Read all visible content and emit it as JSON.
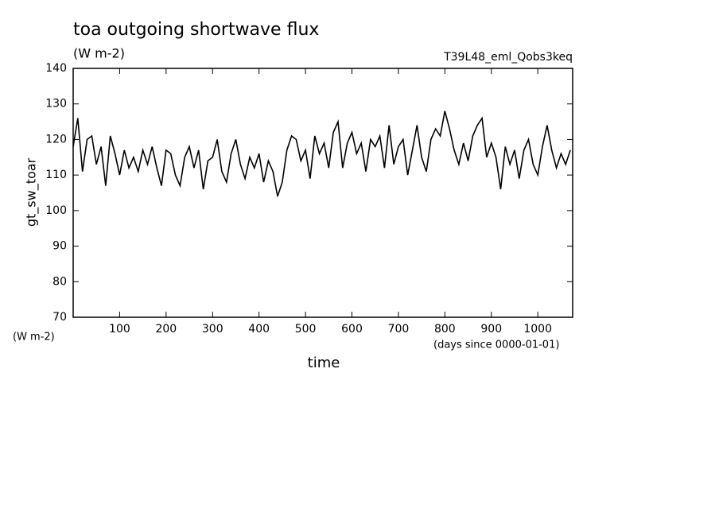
{
  "chart_data": {
    "type": "line",
    "title": "toa outgoing shortwave flux",
    "subtitle": "(W m-2)",
    "annotation": "T39L48_eml_Qobs3keq",
    "y_label": "gt_sw_toar",
    "y_units": "(W m-2)",
    "x_label": "time",
    "x_units": "(days since 0000-01-01)",
    "x": [
      0,
      10,
      20,
      30,
      40,
      50,
      60,
      70,
      80,
      90,
      100,
      110,
      120,
      130,
      140,
      150,
      160,
      170,
      180,
      190,
      200,
      210,
      220,
      230,
      240,
      250,
      260,
      270,
      280,
      290,
      300,
      310,
      320,
      330,
      340,
      350,
      360,
      370,
      380,
      390,
      400,
      410,
      420,
      430,
      440,
      450,
      460,
      470,
      480,
      490,
      500,
      510,
      520,
      530,
      540,
      550,
      560,
      570,
      580,
      590,
      600,
      610,
      620,
      630,
      640,
      650,
      660,
      670,
      680,
      690,
      700,
      710,
      720,
      730,
      740,
      750,
      760,
      770,
      780,
      790,
      800,
      810,
      820,
      830,
      840,
      850,
      860,
      870,
      880,
      890,
      900,
      910,
      920,
      930,
      940,
      950,
      960,
      970,
      980,
      990,
      1000,
      1010,
      1020,
      1030,
      1040,
      1050,
      1060,
      1070
    ],
    "series": [
      {
        "name": "gt_sw_toar",
        "color": "#000000",
        "values": [
          118,
          126,
          111,
          120,
          121,
          113,
          118,
          107,
          121,
          116,
          110,
          117,
          112,
          115,
          111,
          117,
          113,
          118,
          112,
          107,
          117,
          116,
          110,
          107,
          115,
          118,
          112,
          117,
          106,
          114,
          115,
          120,
          111,
          108,
          116,
          120,
          113,
          109,
          115,
          112,
          116,
          108,
          114,
          111,
          104,
          108,
          117,
          121,
          120,
          114,
          117,
          109,
          121,
          116,
          119,
          112,
          122,
          125,
          112,
          119,
          122,
          116,
          119,
          111,
          120,
          118,
          121,
          112,
          124,
          113,
          118,
          120,
          110,
          117,
          124,
          115,
          111,
          120,
          123,
          121,
          128,
          123,
          117,
          113,
          119,
          114,
          121,
          124,
          126,
          115,
          119,
          115,
          106,
          118,
          113,
          117,
          109,
          117,
          120,
          113,
          110,
          118,
          124,
          117,
          112,
          116,
          113,
          117
        ]
      }
    ],
    "xlim": [
      0,
      1075
    ],
    "ylim": [
      70,
      140
    ],
    "xticks": [
      100,
      200,
      300,
      400,
      500,
      600,
      700,
      800,
      900,
      1000
    ],
    "yticks": [
      70,
      80,
      90,
      100,
      110,
      120,
      130,
      140
    ]
  }
}
